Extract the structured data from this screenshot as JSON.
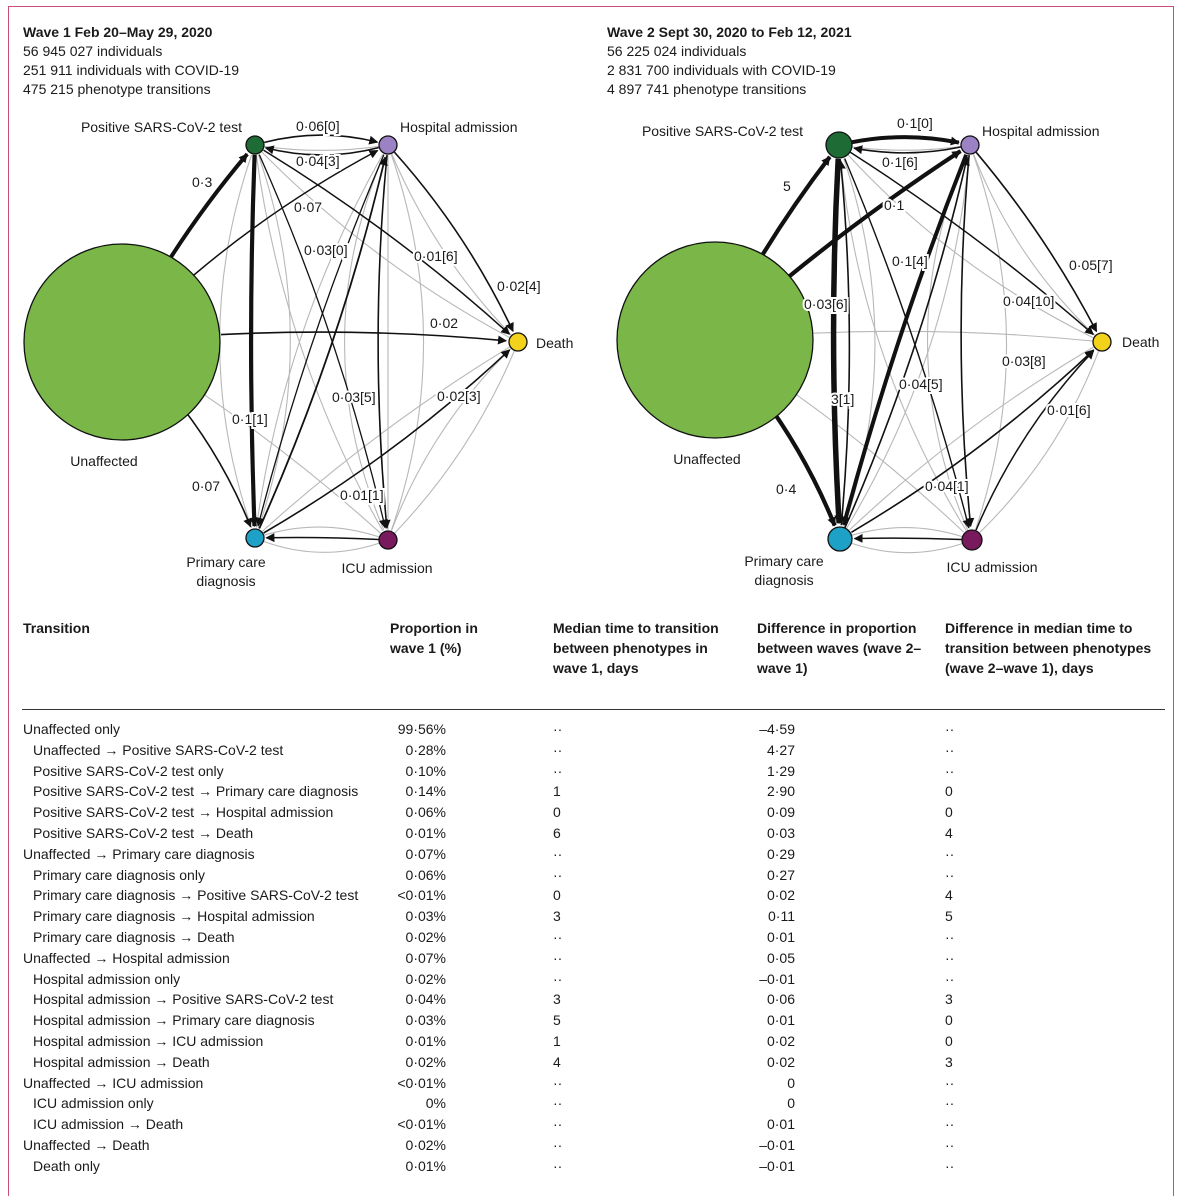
{
  "wave1": {
    "title": "Wave 1 Feb 20–May 29, 2020",
    "stats": [
      "56 945 027 individuals",
      "251 911 individuals with COVID-19",
      "475 215 phenotype transitions"
    ],
    "nodes": [
      {
        "id": "unaffected",
        "label": "Unaffected",
        "color": "#7ab648",
        "r": 98
      },
      {
        "id": "positive",
        "label": "Positive SARS-CoV-2 test",
        "color": "#1e6b35",
        "r": 9
      },
      {
        "id": "hospital",
        "label": "Hospital admission",
        "color": "#9b82c4",
        "r": 9
      },
      {
        "id": "death",
        "label": "Death",
        "color": "#f2d21a",
        "r": 9
      },
      {
        "id": "icu",
        "label": "ICU admission",
        "color": "#7a1a5e",
        "r": 9
      },
      {
        "id": "primary",
        "label": "Primary care diagnosis",
        "color": "#1ea1c6",
        "r": 9
      }
    ],
    "edge_labels": [
      "0·06[0]",
      "0·04[3]",
      "0·3",
      "0·07",
      "0·03[0]",
      "0·01[6]",
      "0·02[4]",
      "0·02",
      "0·03[5]",
      "0·02[3]",
      "0·1[1]",
      "0·07",
      "0·01[1]"
    ]
  },
  "wave2": {
    "title": "Wave 2 Sept 30, 2020 to Feb 12, 2021",
    "stats": [
      "56 225 024 individuals",
      "2 831 700 individuals with COVID-19",
      "4 897 741 phenotype transitions"
    ],
    "nodes": [
      {
        "id": "unaffected",
        "label": "Unaffected",
        "color": "#7ab648",
        "r": 98
      },
      {
        "id": "positive",
        "label": "Positive SARS-CoV-2 test",
        "color": "#1e6b35",
        "r": 13
      },
      {
        "id": "hospital",
        "label": "Hospital admission",
        "color": "#9b82c4",
        "r": 9
      },
      {
        "id": "death",
        "label": "Death",
        "color": "#f2d21a",
        "r": 9
      },
      {
        "id": "icu",
        "label": "ICU admission",
        "color": "#7a1a5e",
        "r": 10
      },
      {
        "id": "primary",
        "label": "Primary care diagnosis",
        "color": "#1ea1c6",
        "r": 12
      }
    ],
    "edge_labels": [
      "0·1[0]",
      "0·1[6]",
      "5",
      "0·1",
      "0·1[4]",
      "0·03[6]",
      "0·05[7]",
      "0·04[10]",
      "0·03[8]",
      "0·04[5]",
      "3[1]",
      "0·01[6]",
      "0·04[1]",
      "0·4"
    ]
  },
  "table": {
    "headers": [
      "Transition",
      "Proportion in wave 1 (%)",
      "Median time to transition between phenotypes in wave 1, days",
      "Difference in proportion between waves (wave 2–wave 1)",
      "Difference in median time to transition between phenotypes (wave 2–wave 1), days"
    ],
    "rows": [
      {
        "transition": "Unaffected only",
        "indent": false,
        "prop": "99·56%",
        "median": "··",
        "diff_prop": "–4·59",
        "diff_median": "··"
      },
      {
        "transition": "Unaffected → Positive SARS-CoV-2 test",
        "indent": true,
        "prop": "0·28%",
        "median": "··",
        "diff_prop": "4·27",
        "diff_median": "··"
      },
      {
        "transition": "Positive SARS-CoV-2 test only",
        "indent": true,
        "prop": "0·10%",
        "median": "··",
        "diff_prop": "1·29",
        "diff_median": "··"
      },
      {
        "transition": "Positive SARS-CoV-2 test → Primary care diagnosis",
        "indent": true,
        "prop": "0·14%",
        "median": "1",
        "diff_prop": "2·90",
        "diff_median": "0"
      },
      {
        "transition": "Positive SARS-CoV-2 test → Hospital admission",
        "indent": true,
        "prop": "0·06%",
        "median": "0",
        "diff_prop": "0·09",
        "diff_median": "0"
      },
      {
        "transition": "Positive SARS-CoV-2 test → Death",
        "indent": true,
        "prop": "0·01%",
        "median": "6",
        "diff_prop": "0·03",
        "diff_median": "4"
      },
      {
        "transition": "Unaffected → Primary care diagnosis",
        "indent": false,
        "prop": "0·07%",
        "median": "··",
        "diff_prop": "0·29",
        "diff_median": "··"
      },
      {
        "transition": "Primary care diagnosis only",
        "indent": true,
        "prop": "0·06%",
        "median": "··",
        "diff_prop": "0·27",
        "diff_median": "··"
      },
      {
        "transition": "Primary care diagnosis → Positive SARS-CoV-2 test",
        "indent": true,
        "prop": "<0·01%",
        "median": "0",
        "diff_prop": "0·02",
        "diff_median": "4"
      },
      {
        "transition": "Primary care diagnosis → Hospital admission",
        "indent": true,
        "prop": "0·03%",
        "median": "3",
        "diff_prop": "0·11",
        "diff_median": "5"
      },
      {
        "transition": "Primary care diagnosis → Death",
        "indent": true,
        "prop": "0·02%",
        "median": "··",
        "diff_prop": "0·01",
        "diff_median": "··"
      },
      {
        "transition": "Unaffected → Hospital admission",
        "indent": false,
        "prop": "0·07%",
        "median": "··",
        "diff_prop": "0·05",
        "diff_median": "··"
      },
      {
        "transition": "Hospital admission only",
        "indent": true,
        "prop": "0·02%",
        "median": "··",
        "diff_prop": "–0·01",
        "diff_median": "··"
      },
      {
        "transition": "Hospital admission → Positive SARS-CoV-2 test",
        "indent": true,
        "prop": "0·04%",
        "median": "3",
        "diff_prop": "0·06",
        "diff_median": "3"
      },
      {
        "transition": "Hospital admission → Primary care diagnosis",
        "indent": true,
        "prop": "0·03%",
        "median": "5",
        "diff_prop": "0·01",
        "diff_median": "0"
      },
      {
        "transition": "Hospital admission → ICU admission",
        "indent": true,
        "prop": "0·01%",
        "median": "1",
        "diff_prop": "0·02",
        "diff_median": "0"
      },
      {
        "transition": "Hospital admission → Death",
        "indent": true,
        "prop": "0·02%",
        "median": "4",
        "diff_prop": "0·02",
        "diff_median": "3"
      },
      {
        "transition": "Unaffected → ICU admission",
        "indent": false,
        "prop": "<0·01%",
        "median": "··",
        "diff_prop": "0",
        "diff_median": "··"
      },
      {
        "transition": "ICU admission only",
        "indent": true,
        "prop": "0%",
        "median": "··",
        "diff_prop": "0",
        "diff_median": "··"
      },
      {
        "transition": "ICU admission → Death",
        "indent": true,
        "prop": "<0·01%",
        "median": "··",
        "diff_prop": "0·01",
        "diff_median": "··"
      },
      {
        "transition": "Unaffected → Death",
        "indent": false,
        "prop": "0·02%",
        "median": "··",
        "diff_prop": "–0·01",
        "diff_median": "··"
      },
      {
        "transition": "Death only",
        "indent": true,
        "prop": "0·01%",
        "median": "··",
        "diff_prop": "–0·01",
        "diff_median": "··"
      }
    ]
  }
}
